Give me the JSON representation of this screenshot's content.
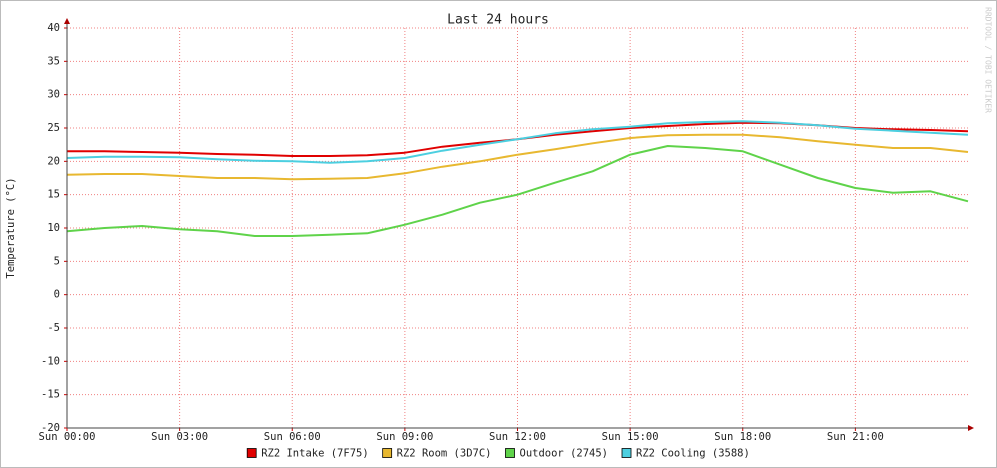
{
  "chart_data": {
    "type": "line",
    "title": "Last 24 hours",
    "y_label": "Temperature (°C)",
    "watermark": "RRDTOOL / TOBI OETIKER",
    "x": [
      0,
      1,
      2,
      3,
      4,
      5,
      6,
      7,
      8,
      9,
      10,
      11,
      12,
      13,
      14,
      15,
      16,
      17,
      18,
      19,
      20,
      21,
      22,
      23,
      24
    ],
    "xlim": [
      0,
      24
    ],
    "xticks": [
      {
        "value": 0,
        "label": "Sun 00:00"
      },
      {
        "value": 3,
        "label": "Sun 03:00"
      },
      {
        "value": 6,
        "label": "Sun 06:00"
      },
      {
        "value": 9,
        "label": "Sun 09:00"
      },
      {
        "value": 12,
        "label": "Sun 12:00"
      },
      {
        "value": 15,
        "label": "Sun 15:00"
      },
      {
        "value": 18,
        "label": "Sun 18:00"
      },
      {
        "value": 21,
        "label": "Sun 21:00"
      }
    ],
    "ylim": [
      -20,
      40
    ],
    "yticks": [
      -20,
      -15,
      -10,
      -5,
      0,
      5,
      10,
      15,
      20,
      25,
      30,
      35,
      40
    ],
    "grid": true,
    "series": [
      {
        "name": "RZ2 Intake (7F75)",
        "color": "#e00000",
        "values": [
          21.5,
          21.5,
          21.4,
          21.3,
          21.1,
          21.0,
          20.8,
          20.8,
          20.9,
          21.3,
          22.2,
          22.8,
          23.3,
          24.0,
          24.5,
          25.0,
          25.3,
          25.6,
          25.8,
          25.7,
          25.4,
          25.0,
          24.8,
          24.7,
          24.5
        ]
      },
      {
        "name": "RZ2 Room (3D7C)",
        "color": "#e8b830",
        "values": [
          18.0,
          18.1,
          18.1,
          17.8,
          17.5,
          17.5,
          17.3,
          17.4,
          17.5,
          18.2,
          19.2,
          20.0,
          21.0,
          21.8,
          22.7,
          23.5,
          23.9,
          24.0,
          24.0,
          23.6,
          23.0,
          22.5,
          22.0,
          22.0,
          21.4
        ]
      },
      {
        "name": "Outdoor (2745)",
        "color": "#5fd34a",
        "values": [
          9.5,
          10.0,
          10.3,
          9.8,
          9.5,
          8.8,
          8.8,
          9.0,
          9.2,
          10.5,
          12.0,
          13.8,
          15.0,
          16.8,
          18.5,
          21.0,
          22.3,
          22.0,
          21.5,
          19.5,
          17.5,
          16.0,
          15.3,
          15.5,
          14.0
        ]
      },
      {
        "name": "RZ2 Cooling (3588)",
        "color": "#4ccfe0",
        "values": [
          20.5,
          20.7,
          20.7,
          20.6,
          20.3,
          20.1,
          20.0,
          19.8,
          20.0,
          20.5,
          21.6,
          22.5,
          23.3,
          24.2,
          24.8,
          25.2,
          25.7,
          25.9,
          26.0,
          25.8,
          25.4,
          24.9,
          24.6,
          24.3,
          24.0
        ]
      }
    ]
  }
}
